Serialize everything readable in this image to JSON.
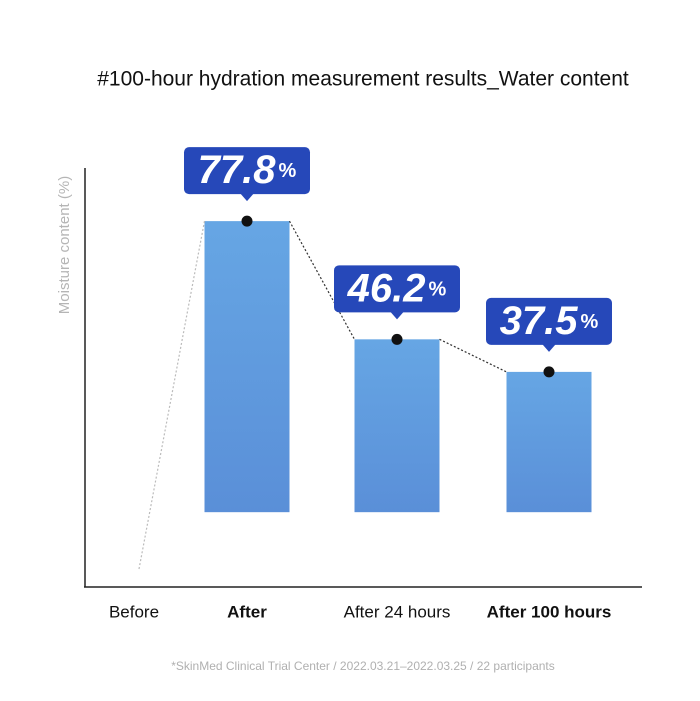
{
  "chart_data": {
    "type": "bar",
    "title": "#100-hour hydration measurement results_Water content",
    "y_label": "Moisture content (%)",
    "categories": [
      "Before",
      "After",
      "After 24 hours",
      "After 100 hours"
    ],
    "bold": [
      false,
      true,
      false,
      true
    ],
    "values": [
      null,
      77.8,
      46.2,
      37.5
    ],
    "value_labels": [
      null,
      "77.8%",
      "46.2%",
      "37.5%"
    ],
    "color": "#5f9de0",
    "label_color": "#2648b9",
    "ylim": [
      -20,
      92
    ],
    "footnote": "*SkinMed Clinical Trial Center / 2022.03.21–2022.03.25 / 22 participants"
  }
}
